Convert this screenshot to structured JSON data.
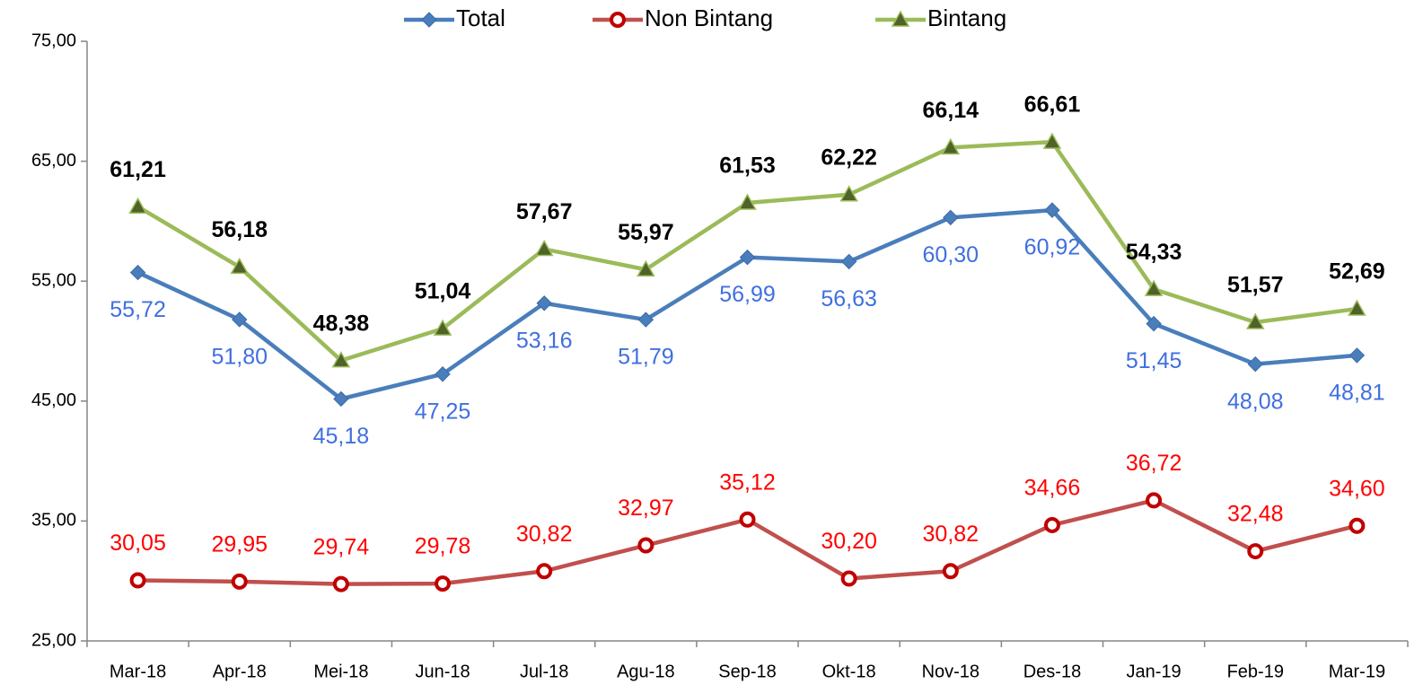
{
  "chart_data": {
    "type": "line",
    "categories": [
      "Mar-18",
      "Apr-18",
      "Mei-18",
      "Jun-18",
      "Jul-18",
      "Agu-18",
      "Sep-18",
      "Okt-18",
      "Nov-18",
      "Des-18",
      "Jan-19",
      "Feb-19",
      "Mar-19"
    ],
    "series": [
      {
        "name": "Total",
        "color": "#4a7ebb",
        "marker": "diamond",
        "label_color": "#3f6fe0",
        "values": [
          55.72,
          51.8,
          45.18,
          47.25,
          53.16,
          51.79,
          56.99,
          56.63,
          60.3,
          60.92,
          51.45,
          48.08,
          48.81
        ],
        "value_labels": [
          "55,72",
          "51,80",
          "45,18",
          "47,25",
          "53,16",
          "51,79",
          "56,99",
          "56,63",
          "60,30",
          "60,92",
          "51,45",
          "48,08",
          "48,81"
        ]
      },
      {
        "name": "Non Bintang",
        "color": "#c0504d",
        "marker": "circle",
        "label_color": "#ff0000",
        "values": [
          30.05,
          29.95,
          29.74,
          29.78,
          30.82,
          32.97,
          35.12,
          30.2,
          30.82,
          34.66,
          36.72,
          32.48,
          34.6
        ],
        "value_labels": [
          "30,05",
          "29,95",
          "29,74",
          "29,78",
          "30,82",
          "32,97",
          "35,12",
          "30,20",
          "30,82",
          "34,66",
          "36,72",
          "32,48",
          "34,60"
        ]
      },
      {
        "name": "Bintang",
        "color": "#9bbb59",
        "marker": "triangle",
        "label_color": "#000000",
        "values": [
          61.21,
          56.18,
          48.38,
          51.04,
          57.67,
          55.97,
          61.53,
          62.22,
          66.14,
          66.61,
          54.33,
          51.57,
          52.69
        ],
        "value_labels": [
          "61,21",
          "56,18",
          "48,38",
          "51,04",
          "57,67",
          "55,97",
          "61,53",
          "62,22",
          "66,14",
          "66,61",
          "54,33",
          "51,57",
          "52,69"
        ]
      }
    ],
    "ylim": [
      25,
      75
    ],
    "yticks": [
      {
        "value": 25,
        "label": "25,00"
      },
      {
        "value": 35,
        "label": "35,00"
      },
      {
        "value": 45,
        "label": "45,00"
      },
      {
        "value": 55,
        "label": "55,00"
      },
      {
        "value": 65,
        "label": "65,00"
      },
      {
        "value": 75,
        "label": "75,00"
      }
    ],
    "grid": false,
    "legend": "top"
  }
}
